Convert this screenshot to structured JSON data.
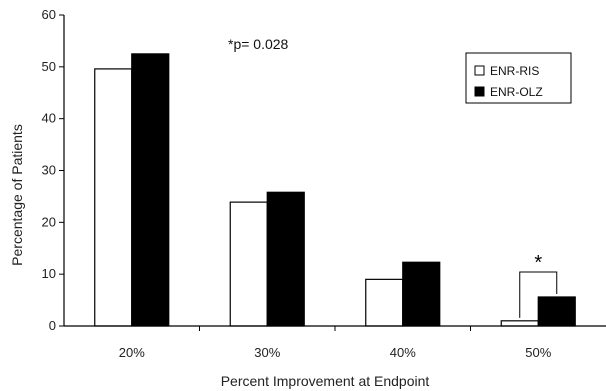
{
  "chart_data": {
    "type": "bar",
    "categories": [
      "20%",
      "30%",
      "40%",
      "50%"
    ],
    "series": [
      {
        "name": "ENR-RIS",
        "values": [
          49.6,
          23.9,
          9.0,
          1.0
        ],
        "fill": "#ffffff",
        "stroke": "#000000"
      },
      {
        "name": "ENR-OLZ",
        "values": [
          52.5,
          25.8,
          12.3,
          5.6
        ],
        "fill": "#000000",
        "stroke": "#000000"
      }
    ],
    "xlabel": "Percent Improvement at Endpoint",
    "ylabel": "Percentage of Patients",
    "ylim": [
      0,
      60
    ],
    "yticks": [
      "0",
      "10",
      "20",
      "30",
      "40",
      "50",
      "60"
    ],
    "annotation": "*p= 0.028",
    "significance_marker": "*",
    "significance_category": "50%",
    "legend_position": "top-right",
    "grid": false
  }
}
